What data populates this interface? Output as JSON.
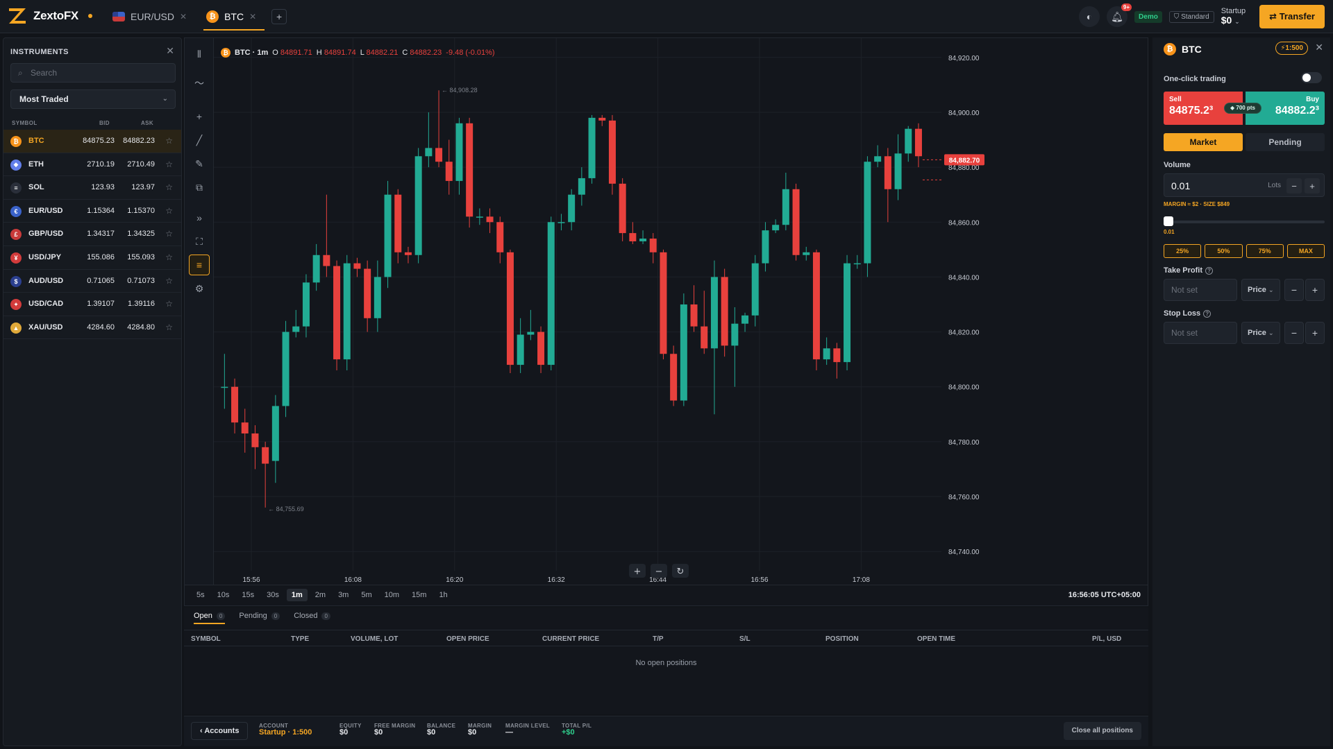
{
  "brand": {
    "name": "ZextoFX"
  },
  "tabs": [
    {
      "label": "EUR/USD",
      "icon": "us-flag-icon"
    },
    {
      "label": "BTC",
      "icon": "bitcoin-icon",
      "active": true
    }
  ],
  "header": {
    "notifications_badge": "9+",
    "mode": "Demo",
    "account_type": "Standard",
    "account_name": "Startup",
    "account_balance": "$0",
    "transfer_label": "Transfer"
  },
  "instruments": {
    "title": "INSTRUMENTS",
    "search_placeholder": "Search",
    "filter": "Most Traded",
    "columns": {
      "symbol": "SYMBOL",
      "bid": "BID",
      "ask": "ASK"
    },
    "rows": [
      {
        "symbol": "BTC",
        "bid": "84875.23",
        "ask": "84882.23",
        "color": "#f7931a",
        "glyph": "₿",
        "selected": true
      },
      {
        "symbol": "ETH",
        "bid": "2710.19",
        "ask": "2710.49",
        "color": "#627eea",
        "glyph": "◆"
      },
      {
        "symbol": "SOL",
        "bid": "123.93",
        "ask": "123.97",
        "color": "#2a2f3a",
        "glyph": "≡"
      },
      {
        "symbol": "EUR/USD",
        "bid": "1.15364",
        "ask": "1.15370",
        "color": "#3a62c9",
        "glyph": "€"
      },
      {
        "symbol": "GBP/USD",
        "bid": "1.34317",
        "ask": "1.34325",
        "color": "#c93a3a",
        "glyph": "£"
      },
      {
        "symbol": "USD/JPY",
        "bid": "155.086",
        "ask": "155.093",
        "color": "#d23b3b",
        "glyph": "¥"
      },
      {
        "symbol": "AUD/USD",
        "bid": "0.71065",
        "ask": "0.71073",
        "color": "#2b3f8f",
        "glyph": "$"
      },
      {
        "symbol": "USD/CAD",
        "bid": "1.39107",
        "ask": "1.39116",
        "color": "#d23b3b",
        "glyph": "✦"
      },
      {
        "symbol": "XAU/USD",
        "bid": "4284.60",
        "ask": "4284.80",
        "color": "#e0a93a",
        "glyph": "▲"
      }
    ]
  },
  "chart_legend": {
    "title": "BTC · 1m",
    "o_label": "O",
    "o": "84891.71",
    "h_label": "H",
    "h": "84891.74",
    "l_label": "L",
    "l": "84882.21",
    "c_label": "C",
    "c": "84882.23",
    "change": "-9.48 (-0.01%)"
  },
  "chart_data": {
    "type": "candlestick",
    "ylim": [
      84735,
      84925
    ],
    "y_ticks": [
      "84,920.00",
      "84,900.00",
      "84,880.00",
      "84,860.00",
      "84,840.00",
      "84,820.00",
      "84,800.00",
      "84,780.00",
      "84,760.00",
      "84,740.00"
    ],
    "y_tick_values": [
      84920,
      84900,
      84880,
      84860,
      84840,
      84820,
      84800,
      84780,
      84760,
      84740
    ],
    "x_ticks": [
      "15:56",
      "16:08",
      "16:20",
      "16:32",
      "16:44",
      "16:56",
      "17:08"
    ],
    "current_price": "84,882.70",
    "current_price_value": 84882.7,
    "high_marker": "84,908.28",
    "high_value": 84908.28,
    "low_marker": "84,755.69",
    "low_value": 84755.69,
    "candles": [
      [
        84800,
        84800,
        84812,
        84792
      ],
      [
        84800,
        84787,
        84803,
        84783
      ],
      [
        84787,
        84783,
        84792,
        84776
      ],
      [
        84783,
        84778,
        84786,
        84770
      ],
      [
        84778,
        84772,
        84780,
        84756
      ],
      [
        84773,
        84793,
        84797,
        84765
      ],
      [
        84793,
        84820,
        84824,
        84789
      ],
      [
        84820,
        84822,
        84828,
        84818
      ],
      [
        84822,
        84838,
        84841,
        84818
      ],
      [
        84838,
        84848,
        84852,
        84835
      ],
      [
        84848,
        84844,
        84870,
        84840
      ],
      [
        84844,
        84810,
        84846,
        84806
      ],
      [
        84810,
        84845,
        84848,
        84806
      ],
      [
        84845,
        84843,
        84847,
        84840
      ],
      [
        84843,
        84825,
        84846,
        84820
      ],
      [
        84825,
        84840,
        84846,
        84820
      ],
      [
        84840,
        84870,
        84875,
        84836
      ],
      [
        84870,
        84849,
        84872,
        84845
      ],
      [
        84849,
        84848,
        84851,
        84845
      ],
      [
        84848,
        84884,
        84887,
        84845
      ],
      [
        84884,
        84887,
        84900,
        84880
      ],
      [
        84887,
        84882,
        84908,
        84880
      ],
      [
        84882,
        84875,
        84890,
        84870
      ],
      [
        84875,
        84896,
        84898,
        84870
      ],
      [
        84896,
        84862,
        84898,
        84858
      ],
      [
        84862,
        84862,
        84865,
        84859
      ],
      [
        84862,
        84860,
        84865,
        84856
      ],
      [
        84860,
        84849,
        84862,
        84845
      ],
      [
        84849,
        84808,
        84850,
        84805
      ],
      [
        84808,
        84819,
        84825,
        84805
      ],
      [
        84819,
        84820,
        84828,
        84817
      ],
      [
        84820,
        84808,
        84822,
        84805
      ],
      [
        84808,
        84860,
        84862,
        84806
      ],
      [
        84860,
        84860,
        84863,
        84857
      ],
      [
        84860,
        84870,
        84872,
        84857
      ],
      [
        84870,
        84876,
        84880,
        84866
      ],
      [
        84876,
        84898,
        84899,
        84874
      ],
      [
        84898,
        84897,
        84899,
        84895
      ],
      [
        84897,
        84874,
        84899,
        84870
      ],
      [
        84874,
        84856,
        84876,
        84853
      ],
      [
        84856,
        84853,
        84860,
        84852
      ],
      [
        84853,
        84854,
        84857,
        84852
      ],
      [
        84854,
        84849,
        84856,
        84845
      ],
      [
        84849,
        84812,
        84850,
        84810
      ],
      [
        84812,
        84795,
        84815,
        84793
      ],
      [
        84795,
        84830,
        84834,
        84793
      ],
      [
        84830,
        84822,
        84837,
        84820
      ],
      [
        84822,
        84814,
        84835,
        84812
      ],
      [
        84814,
        84840,
        84846,
        84790
      ],
      [
        84840,
        84815,
        84843,
        84811
      ],
      [
        84815,
        84823,
        84829,
        84800
      ],
      [
        84823,
        84826,
        84827,
        84820
      ],
      [
        84826,
        84845,
        84848,
        84822
      ],
      [
        84845,
        84857,
        84860,
        84842
      ],
      [
        84857,
        84859,
        84861,
        84856
      ],
      [
        84859,
        84872,
        84878,
        84857
      ],
      [
        84872,
        84848,
        84874,
        84846
      ],
      [
        84848,
        84849,
        84851,
        84846
      ],
      [
        84849,
        84810,
        84850,
        84806
      ],
      [
        84810,
        84814,
        84818,
        84808
      ],
      [
        84814,
        84809,
        84816,
        84803
      ],
      [
        84809,
        84845,
        84848,
        84806
      ],
      [
        84845,
        84845,
        84848,
        84843
      ],
      [
        84845,
        84882,
        84884,
        84840
      ],
      [
        84882,
        84884,
        84888,
        84880
      ],
      [
        84884,
        84872,
        84887,
        84860
      ],
      [
        84872,
        84885,
        84892,
        84868
      ],
      [
        84885,
        84894,
        84895,
        84882
      ],
      [
        84894,
        84884,
        84896,
        84880
      ]
    ]
  },
  "toolbar_icons": [
    "candles-icon",
    "indicator-icon",
    "crosshair-icon",
    "trendline-icon",
    "brush-icon",
    "shapes-icon",
    "expand-icon",
    "fullscreen-icon",
    "list-icon",
    "settings-icon"
  ],
  "chart_controls": {
    "zoom_in": "+",
    "zoom_out": "−",
    "reset": "↻"
  },
  "timeframes": [
    "5s",
    "10s",
    "15s",
    "30s",
    "1m",
    "2m",
    "3m",
    "5m",
    "10m",
    "15m",
    "1h"
  ],
  "active_timeframe": "1m",
  "clock": "16:56:05 UTC+05:00",
  "positions": {
    "tabs": [
      {
        "label": "Open",
        "count": "0"
      },
      {
        "label": "Pending",
        "count": "0"
      },
      {
        "label": "Closed",
        "count": "0"
      }
    ],
    "columns": [
      "SYMBOL",
      "TYPE",
      "VOLUME, LOT",
      "OPEN PRICE",
      "CURRENT PRICE",
      "T/P",
      "S/L",
      "POSITION",
      "OPEN TIME",
      "P/L, USD"
    ],
    "empty_text": "No open positions"
  },
  "status": {
    "accounts_label": "Accounts",
    "account_k": "ACCOUNT",
    "account_v": "Startup · 1:500",
    "equity_k": "EQUITY",
    "equity_v": "$0",
    "free_margin_k": "FREE MARGIN",
    "free_margin_v": "$0",
    "balance_k": "BALANCE",
    "balance_v": "$0",
    "margin_k": "MARGIN",
    "margin_v": "$0",
    "margin_level_k": "MARGIN LEVEL",
    "margin_level_v": "—",
    "total_pl_k": "TOTAL P/L",
    "total_pl_v": "+$0",
    "close_all": "Close all positions"
  },
  "order": {
    "symbol": "BTC",
    "leverage": "1:500",
    "one_click": "One-click trading",
    "sell_label": "Sell",
    "sell_price": "84875.2³",
    "buy_label": "Buy",
    "buy_price": "84882.2³",
    "spread": "700 pts",
    "market": "Market",
    "pending": "Pending",
    "volume_label": "Volume",
    "volume": "0.01",
    "volume_unit": "Lots",
    "margin_info": "MARGIN ≈ $2 · SIZE $849",
    "slider_value": "0.01",
    "pcts": [
      "25%",
      "50%",
      "75%",
      "MAX"
    ],
    "tp_label": "Take Profit",
    "tp_placeholder": "Not set",
    "tp_mode": "Price",
    "sl_label": "Stop Loss",
    "sl_placeholder": "Not set",
    "sl_mode": "Price"
  }
}
